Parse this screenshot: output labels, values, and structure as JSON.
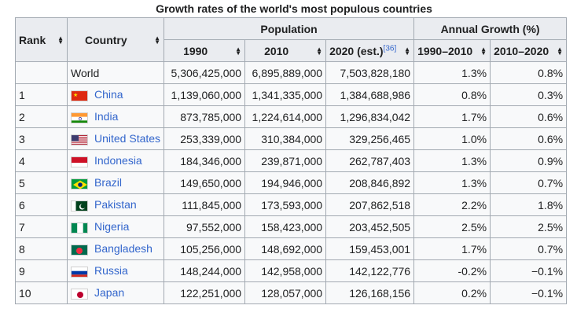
{
  "caption": "Growth rates of the world's most populous countries",
  "headers": {
    "rank": "Rank",
    "country": "Country",
    "population": "Population",
    "annual_growth": "Annual Growth (%)",
    "y1990": "1990",
    "y2010": "2010",
    "y2020": "2020 (est.)",
    "y2020_ref": "[36]",
    "g1": "1990–2010",
    "g2": "2010–2020"
  },
  "rows": [
    {
      "rank": "",
      "country": "World",
      "flag": "",
      "p1990": "5,306,425,000",
      "p2010": "6,895,889,000",
      "p2020": "7,503,828,180",
      "g1": "1.3%",
      "g2": "0.8%"
    },
    {
      "rank": "1",
      "country": "China",
      "flag": "china",
      "p1990": "1,139,060,000",
      "p2010": "1,341,335,000",
      "p2020": "1,384,688,986",
      "g1": "0.8%",
      "g2": "0.3%"
    },
    {
      "rank": "2",
      "country": "India",
      "flag": "india",
      "p1990": "873,785,000",
      "p2010": "1,224,614,000",
      "p2020": "1,296,834,042",
      "g1": "1.7%",
      "g2": "0.6%"
    },
    {
      "rank": "3",
      "country": "United States",
      "flag": "usa",
      "p1990": "253,339,000",
      "p2010": "310,384,000",
      "p2020": "329,256,465",
      "g1": "1.0%",
      "g2": "0.6%"
    },
    {
      "rank": "4",
      "country": "Indonesia",
      "flag": "indonesia",
      "p1990": "184,346,000",
      "p2010": "239,871,000",
      "p2020": "262,787,403",
      "g1": "1.3%",
      "g2": "0.9%"
    },
    {
      "rank": "5",
      "country": "Brazil",
      "flag": "brazil",
      "p1990": "149,650,000",
      "p2010": "194,946,000",
      "p2020": "208,846,892",
      "g1": "1.3%",
      "g2": "0.7%"
    },
    {
      "rank": "6",
      "country": "Pakistan",
      "flag": "pakistan",
      "p1990": "111,845,000",
      "p2010": "173,593,000",
      "p2020": "207,862,518",
      "g1": "2.2%",
      "g2": "1.8%"
    },
    {
      "rank": "7",
      "country": "Nigeria",
      "flag": "nigeria",
      "p1990": "97,552,000",
      "p2010": "158,423,000",
      "p2020": "203,452,505",
      "g1": "2.5%",
      "g2": "2.5%"
    },
    {
      "rank": "8",
      "country": "Bangladesh",
      "flag": "bangladesh",
      "p1990": "105,256,000",
      "p2010": "148,692,000",
      "p2020": "159,453,001",
      "g1": "1.7%",
      "g2": "0.7%"
    },
    {
      "rank": "9",
      "country": "Russia",
      "flag": "russia",
      "p1990": "148,244,000",
      "p2010": "142,958,000",
      "p2020": "142,122,776",
      "g1": "-0.2%",
      "g2": "−0.1%"
    },
    {
      "rank": "10",
      "country": "Japan",
      "flag": "japan",
      "p1990": "122,251,000",
      "p2010": "128,057,000",
      "p2020": "126,168,156",
      "g1": "0.2%",
      "g2": "−0.1%"
    }
  ],
  "colors": {
    "link": "#3366cc",
    "header_bg": "#eaecf0",
    "cell_bg": "#f8f9fa",
    "border": "#a2a9b1"
  }
}
